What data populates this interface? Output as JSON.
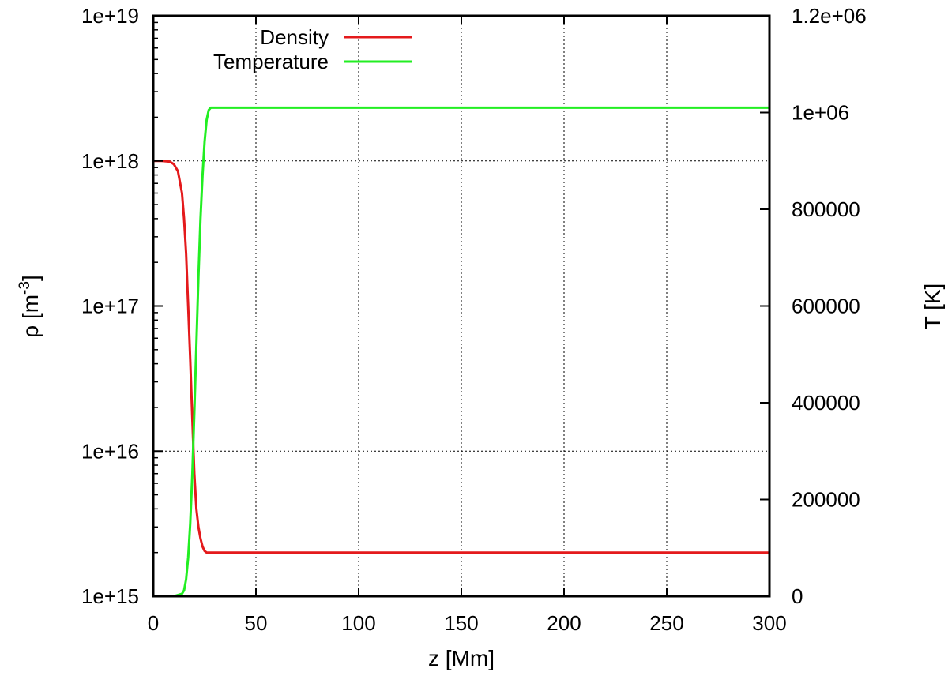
{
  "chart_data": {
    "type": "line",
    "xlabel": "z [Mm]",
    "ylabel_left": "ρ [m^-3]",
    "ylabel_left_base": "ρ [m",
    "ylabel_left_sup": "-3",
    "ylabel_left_close": "]",
    "ylabel_right": "T [K]",
    "xlim": [
      0,
      300
    ],
    "ylim_left": [
      1000000000000000.0,
      1e+19
    ],
    "ylim_right": [
      0,
      1200000
    ],
    "y_left_scale": "log",
    "y_right_scale": "linear",
    "grid": true,
    "legend_position": "top-left",
    "x_ticks": [
      0,
      50,
      100,
      150,
      200,
      250,
      300
    ],
    "x_tick_labels": [
      "0",
      "50",
      "100",
      "150",
      "200",
      "250",
      "300"
    ],
    "y_left_ticks": [
      1000000000000000.0,
      1e+16,
      1e+17,
      1e+18,
      1e+19
    ],
    "y_left_tick_labels": [
      "1e+15",
      "1e+16",
      "1e+17",
      "1e+18",
      "1e+19"
    ],
    "y_right_ticks": [
      0,
      200000,
      400000,
      600000,
      800000,
      1000000,
      1200000
    ],
    "y_right_tick_labels": [
      "0",
      "200000",
      "400000",
      "600000",
      "800000",
      "1e+06",
      "1.2e+06"
    ],
    "series": [
      {
        "name": "Density",
        "axis": "left",
        "color": "#e41a1c",
        "x": [
          0,
          4,
          8,
          10,
          12,
          14,
          15,
          16,
          17,
          18,
          19,
          20,
          21,
          22,
          23,
          24,
          25,
          26,
          27,
          28,
          29,
          30,
          32,
          35,
          40,
          60,
          100,
          150,
          200,
          250,
          300
        ],
        "y": [
          1e+18,
          1e+18,
          9.9e+17,
          9.5e+17,
          8.5e+17,
          6e+17,
          4e+17,
          2.3e+17,
          1e+17,
          4.3e+16,
          1.7e+16,
          7000000000000000.0,
          4000000000000000.0,
          3000000000000000.0,
          2500000000000000.0,
          2200000000000000.0,
          2050000000000000.0,
          2000000000000000.0,
          2000000000000000.0,
          2000000000000000.0,
          2000000000000000.0,
          2000000000000000.0,
          2000000000000000.0,
          2000000000000000.0,
          2000000000000000.0,
          2000000000000000.0,
          2000000000000000.0,
          2000000000000000.0,
          2000000000000000.0,
          2000000000000000.0,
          2000000000000000.0
        ]
      },
      {
        "name": "Temperature",
        "axis": "right",
        "color": "#22ee22",
        "x": [
          0,
          10,
          14,
          15,
          16,
          17,
          18,
          19,
          20,
          21,
          22,
          23,
          24,
          25,
          26,
          27,
          28,
          29,
          30,
          32,
          35,
          40,
          60,
          100,
          150,
          200,
          250,
          300
        ],
        "y": [
          0,
          0,
          5000,
          12000,
          35000,
          80000,
          150000,
          250000,
          380000,
          520000,
          660000,
          780000,
          870000,
          940000,
          985000,
          1005000,
          1010000,
          1010000,
          1010000,
          1010000,
          1010000,
          1010000,
          1010000,
          1010000,
          1010000,
          1010000,
          1010000,
          1010000
        ]
      }
    ]
  }
}
